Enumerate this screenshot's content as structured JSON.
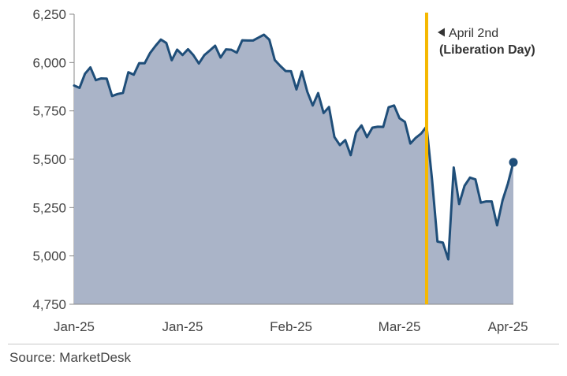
{
  "chart_data": {
    "type": "area",
    "title": "",
    "xlabel": "",
    "ylabel": "",
    "ylim": [
      4750,
      6250
    ],
    "yticks": [
      4750,
      5000,
      5250,
      5500,
      5750,
      6000,
      6250
    ],
    "ytick_labels": [
      "4,750",
      "5,000",
      "5,250",
      "5,500",
      "5,750",
      "6,000",
      "6,250"
    ],
    "xtick_labels": [
      {
        "label": "Jan-25",
        "index": 0
      },
      {
        "label": "Jan-25",
        "index": 20
      },
      {
        "label": "Feb-25",
        "index": 40
      },
      {
        "label": "Mar-25",
        "index": 60
      },
      {
        "label": "Apr-25",
        "index": 80
      }
    ],
    "values": [
      5881,
      5869,
      5942,
      5975,
      5909,
      5918,
      5917,
      5827,
      5837,
      5843,
      5950,
      5937,
      5997,
      5996,
      6049,
      6086,
      6119,
      6101,
      6012,
      6067,
      6039,
      6069,
      6038,
      5995,
      6038,
      6062,
      6087,
      6026,
      6068,
      6066,
      6051,
      6115,
      6114,
      6114,
      6129,
      6144,
      6118,
      6013,
      5983,
      5956,
      5955,
      5861,
      5954,
      5849,
      5778,
      5842,
      5739,
      5770,
      5615,
      5573,
      5599,
      5521,
      5639,
      5675,
      5614,
      5663,
      5668,
      5667,
      5769,
      5778,
      5712,
      5693,
      5581,
      5611,
      5633,
      5670,
      5396,
      5074,
      5069,
      4982,
      5457,
      5268,
      5363,
      5405,
      5396,
      5275,
      5282,
      5282,
      5158,
      5287,
      5375,
      5484
    ],
    "event_index": 65,
    "event_label": "April 2nd",
    "event_sublabel": "(Liberation Day)",
    "colors": {
      "line": "#1f4e79",
      "area": "#aab4c8",
      "event_line": "#f5b800",
      "axis": "#888888"
    },
    "last_point_marker": true
  },
  "source": "Source: MarketDesk"
}
